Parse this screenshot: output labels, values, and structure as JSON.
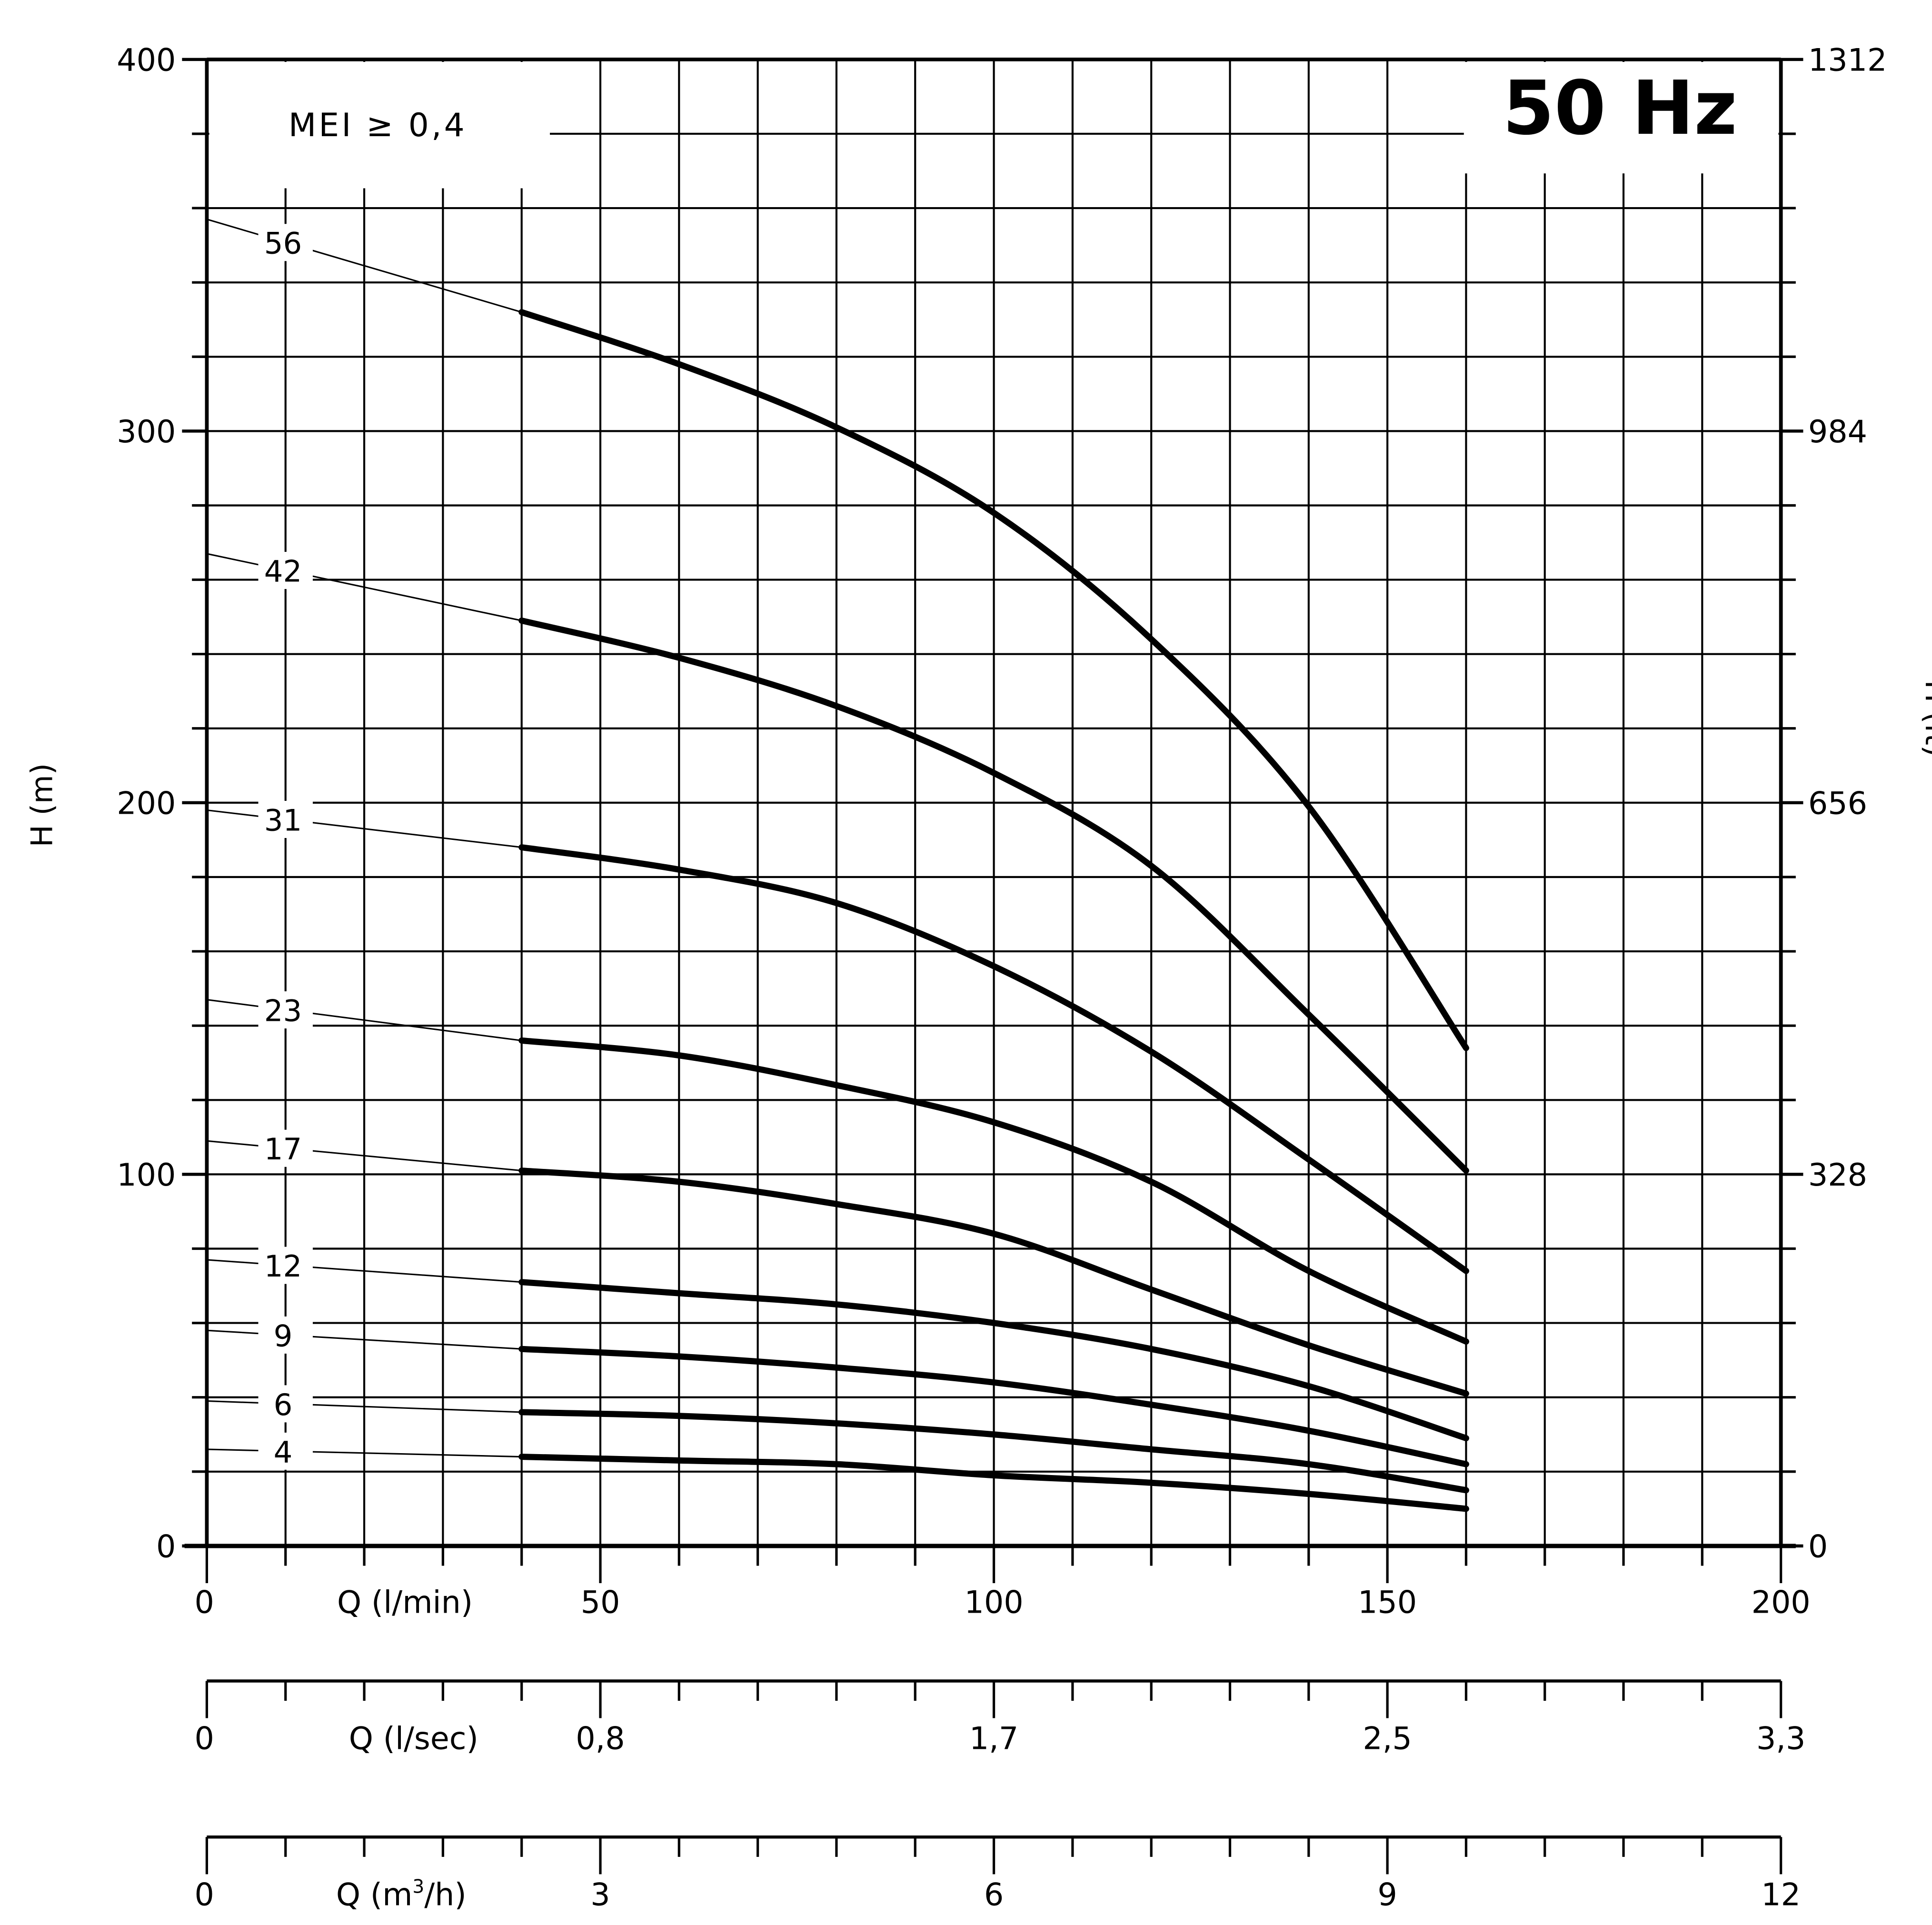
{
  "chart_data": {
    "type": "line",
    "title": "50 Hz",
    "annotation": "MEI ≥ 0,4",
    "ylabel": "H (m)",
    "ylabel_right": "H (ft)",
    "xlabel": "Q (l/min)",
    "xlim": [
      0,
      200
    ],
    "ylim": [
      0,
      400
    ],
    "grid": true,
    "x_ticks": [
      "0",
      "50",
      "100",
      "150",
      "200"
    ],
    "y_ticks": [
      "0",
      "100",
      "200",
      "300",
      "400"
    ],
    "y_ticks_right": [
      "0",
      "328",
      "656",
      "984",
      "1312"
    ],
    "secondary_x_axes": [
      {
        "label": "Q (l/sec)",
        "ticks": [
          "0",
          "0,8",
          "1,7",
          "2,5",
          "3,3"
        ]
      },
      {
        "label": "Q (m³/h)",
        "label_base": "Q (m",
        "label_sup": "3",
        "label_tail": "/h)",
        "ticks": [
          "0",
          "3",
          "6",
          "9",
          "12"
        ]
      }
    ],
    "x": [
      40,
      60,
      80,
      100,
      120,
      140,
      160
    ],
    "series": [
      {
        "name": "56",
        "shutoff_head": 357,
        "values": [
          332,
          318,
          301,
          278,
          244,
          199,
          134
        ]
      },
      {
        "name": "42",
        "shutoff_head": 267,
        "values": [
          249,
          239,
          226,
          208,
          183,
          143,
          101
        ]
      },
      {
        "name": "31",
        "shutoff_head": 198,
        "values": [
          188,
          182,
          173,
          156,
          133,
          104,
          74
        ]
      },
      {
        "name": "23",
        "shutoff_head": 147,
        "values": [
          136,
          132,
          124,
          114,
          98,
          74,
          55
        ]
      },
      {
        "name": "17",
        "shutoff_head": 109,
        "values": [
          101,
          98,
          92,
          84,
          69,
          54,
          41
        ]
      },
      {
        "name": "12",
        "shutoff_head": 77,
        "values": [
          71,
          68,
          65,
          60,
          53,
          43,
          29
        ]
      },
      {
        "name": "9",
        "shutoff_head": 58,
        "values": [
          53,
          51,
          48,
          44,
          38,
          31,
          22
        ]
      },
      {
        "name": "6",
        "shutoff_head": 39,
        "values": [
          36,
          35,
          33,
          30,
          26,
          22,
          15
        ]
      },
      {
        "name": "4",
        "shutoff_head": 26,
        "values": [
          24,
          23,
          22,
          19,
          17,
          14,
          10
        ]
      }
    ]
  }
}
